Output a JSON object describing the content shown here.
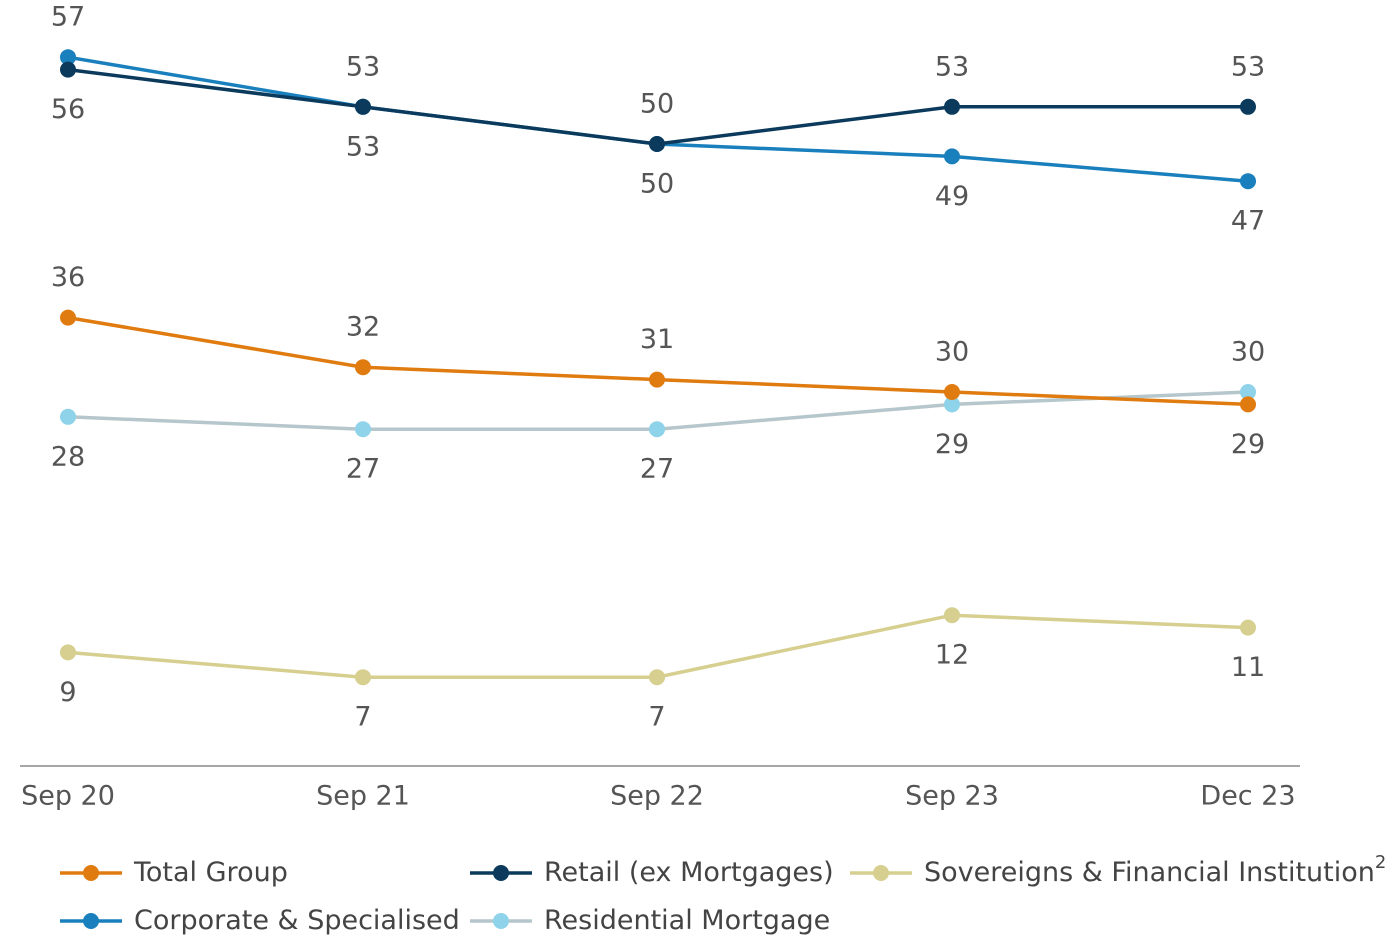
{
  "chart_data": {
    "type": "line",
    "categories": [
      "Sep 20",
      "Sep 21",
      "Sep 22",
      "Sep 23",
      "Dec 23"
    ],
    "ylim": [
      0,
      62
    ],
    "series": [
      {
        "name": "Total Group",
        "color": "#e07b10",
        "values": [
          36,
          32,
          31,
          30,
          29
        ]
      },
      {
        "name": "Retail (ex Mortgages)",
        "color": "#0b3a5c",
        "values": [
          56,
          53,
          50,
          53,
          53
        ]
      },
      {
        "name": "Sovereigns & Financial Institution",
        "name_note": "2",
        "color": "#d6cf8f",
        "values": [
          9,
          7,
          7,
          12,
          11
        ]
      },
      {
        "name": "Corporate & Specialised",
        "color": "#1a80bd",
        "values": [
          57,
          53,
          50,
          49,
          47
        ]
      },
      {
        "name": "Residential Mortgage",
        "color": "#b5c7cc",
        "marker_color": "#8fd3ea",
        "values": [
          28,
          27,
          27,
          29,
          30
        ]
      }
    ]
  }
}
